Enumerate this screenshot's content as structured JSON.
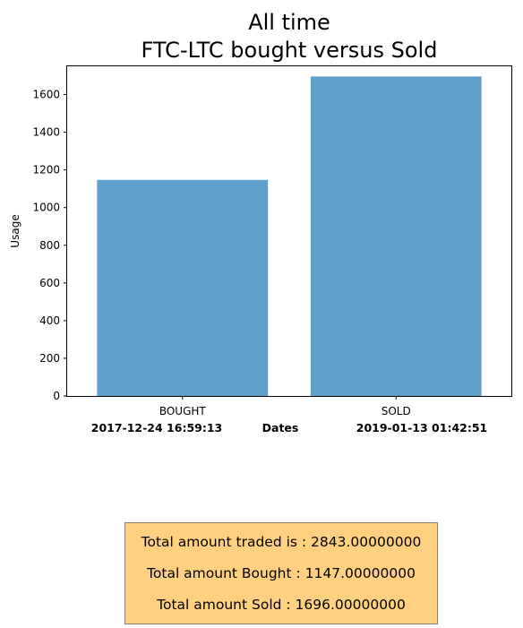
{
  "chart_data": {
    "type": "bar",
    "title_lines": [
      "All time",
      "FTC-LTC bought versus Sold"
    ],
    "categories": [
      "BOUGHT",
      "SOLD"
    ],
    "values": [
      1147.0,
      1696.0
    ],
    "ylabel": "Usage",
    "ylim": [
      0,
      1750
    ],
    "yticks": [
      0,
      200,
      400,
      600,
      800,
      1000,
      1200,
      1400,
      1600
    ],
    "bar_color": "#5f9fca",
    "grid": false,
    "xlabel_row": {
      "start_date": "2017-12-24 16:59:13",
      "label": "Dates",
      "end_date": "2019-01-13 01:42:51"
    }
  },
  "summary": {
    "box_color": "#ffd080",
    "lines": [
      "Total amount traded is : 2843.00000000",
      "Total amount Bought : 1147.00000000",
      "Total amount Sold : 1696.00000000"
    ]
  }
}
